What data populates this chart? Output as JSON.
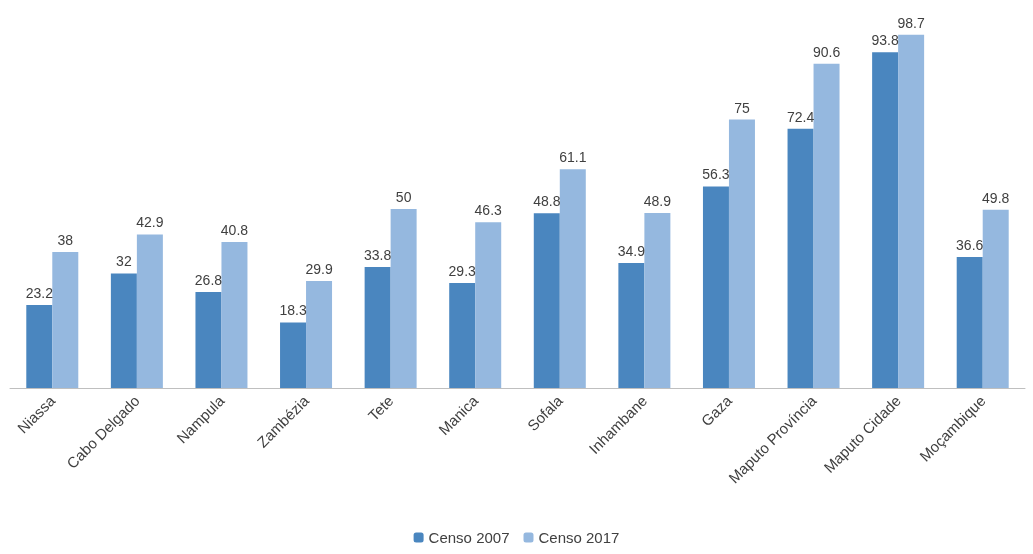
{
  "chart_data": {
    "type": "bar",
    "categories": [
      "Niassa",
      "Cabo Delgado",
      "Nampula",
      "Zambézia",
      "Tete",
      "Manica",
      "Sofala",
      "Inhambane",
      "Gaza",
      "Maputo Província",
      "Maputo Cidade",
      "Moçambique"
    ],
    "series": [
      {
        "name": "Censo 2007",
        "color": "#4a86bf",
        "values": [
          23.2,
          32,
          26.8,
          18.3,
          33.8,
          29.3,
          48.8,
          34.9,
          56.3,
          72.4,
          93.8,
          36.6
        ]
      },
      {
        "name": "Censo 2017",
        "color": "#95b8df",
        "values": [
          38,
          42.9,
          40.8,
          29.9,
          50,
          46.3,
          61.1,
          48.9,
          75,
          90.6,
          98.7,
          49.8
        ]
      }
    ],
    "data_labels": true,
    "legend": "bottom",
    "grid": false
  }
}
